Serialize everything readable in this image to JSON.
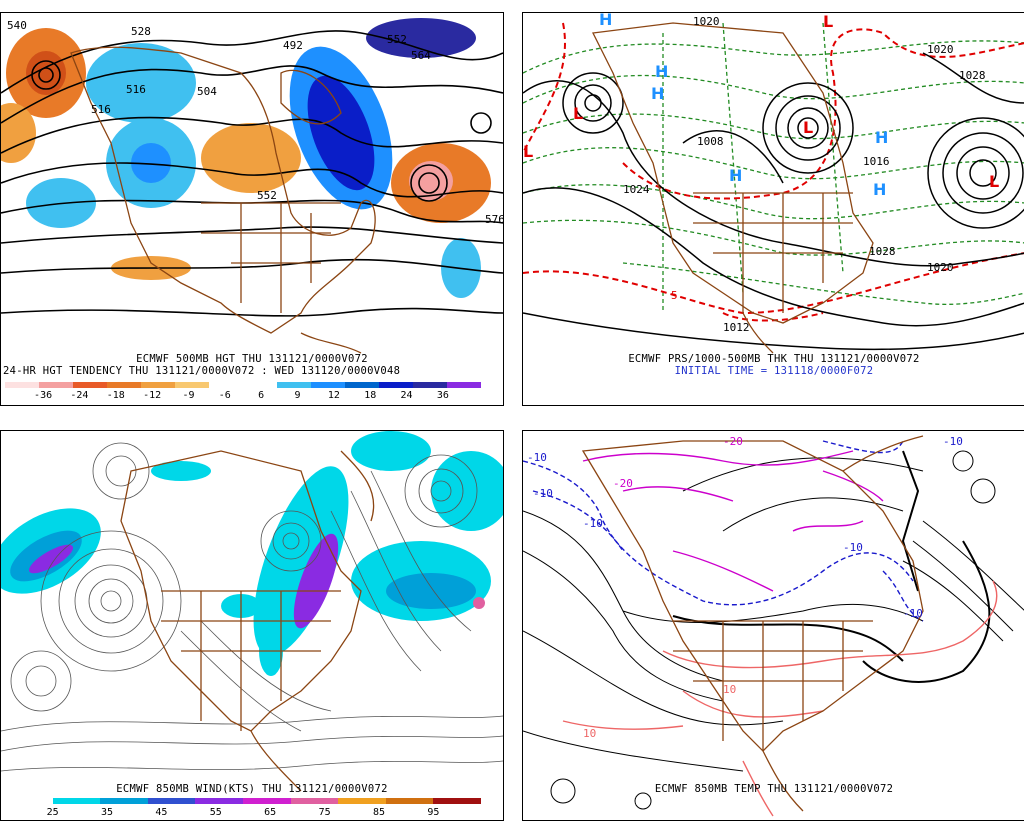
{
  "colors": {
    "background": "#ffffff",
    "land_outline": "#8b4513",
    "contour": "#000000",
    "thickness_line": "#cc0000",
    "dashed_line": "#228b22",
    "cold_line": "#1a1acc",
    "magenta_line": "#cc00cc",
    "warm_line": "#ee6666",
    "wind_cyan": "#00e0f0",
    "wind_purple": "#a020f0"
  },
  "panels": {
    "hgt500": {
      "contour_labels": [
        "540",
        "528",
        "516",
        "504",
        "492",
        "552",
        "564",
        "576",
        "552",
        "516"
      ],
      "caption_line1": "ECMWF 500MB HGT THU 131121/0000V072",
      "caption_line2": "24-HR HGT TENDENCY THU 131121/0000V072 : WED 131120/0000V048",
      "colorbar": {
        "colors": [
          "#fde1e1",
          "#f4a0a0",
          "#e85a28",
          "#e87a28",
          "#f0a040",
          "#f8c870",
          "#ffffff",
          "#ffffff",
          "#40c0f0",
          "#1e90ff",
          "#0066cc",
          "#0a1ec8",
          "#2a2aa0",
          "#8a2be2"
        ],
        "tick_labels": [
          "-36",
          "-24",
          "-18",
          "-12",
          "-9",
          "-6",
          "6",
          "9",
          "12",
          "18",
          "24",
          "36"
        ]
      }
    },
    "prs": {
      "contour_labels": [
        "1020",
        "1020",
        "1028",
        "1016",
        "1020",
        "1012",
        "1028",
        "1008",
        "1024",
        "5"
      ],
      "low_markers": [
        "L",
        "L",
        "L",
        "L",
        "L"
      ],
      "high_markers": [
        "H",
        "H",
        "H",
        "H",
        "H",
        "H"
      ],
      "caption_line1": "ECMWF PRS/1000-500MB THK THU 131121/0000V072",
      "caption_line2": "INITIAL TIME = 131118/0000F072"
    },
    "wind850": {
      "caption_line1": "ECMWF 850MB WIND(KTS) THU 131121/0000V072",
      "colorbar": {
        "colors": [
          "#ffffff",
          "#00d7e8",
          "#00a0d8",
          "#3050d0",
          "#8a2be2",
          "#d020d0",
          "#e060a0",
          "#f0a020",
          "#d07010",
          "#a01010"
        ],
        "tick_labels": [
          "25",
          "35",
          "45",
          "55",
          "65",
          "75",
          "85",
          "95"
        ]
      }
    },
    "temp850": {
      "contour_labels": [
        "-20",
        "-10",
        "-10",
        "-10",
        "-10",
        "-20",
        "-10",
        "10",
        "10",
        "-10"
      ],
      "caption_line1": "ECMWF 850MB TEMP THU 131121/0000V072"
    }
  }
}
